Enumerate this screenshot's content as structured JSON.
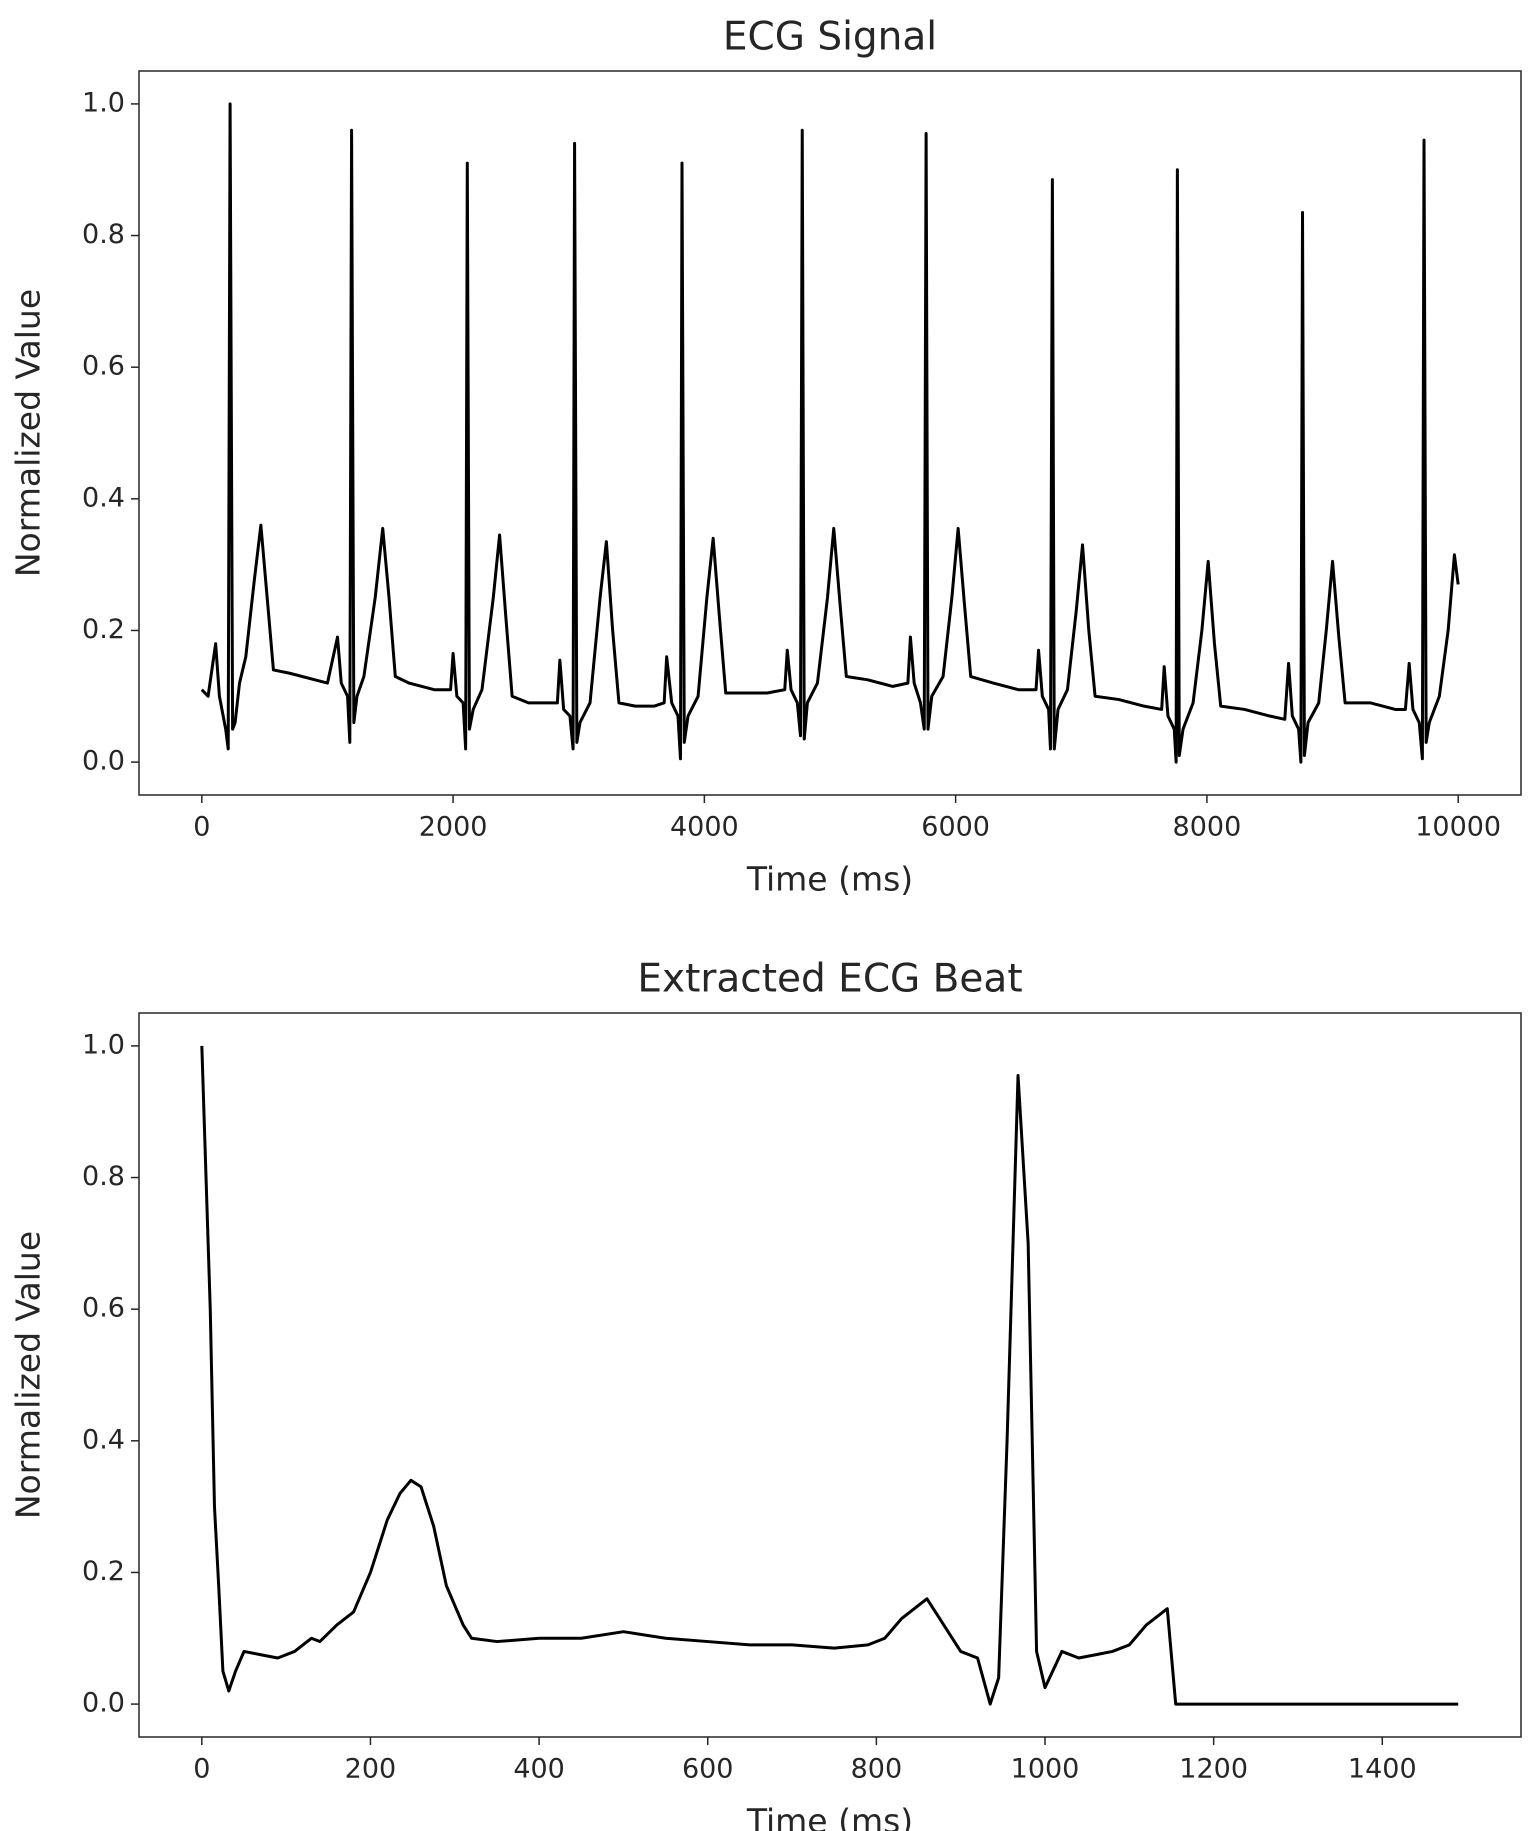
{
  "chart_data": [
    {
      "type": "line",
      "title": "ECG Signal",
      "x_label": "Time (ms)",
      "y_label": "Normalized Value",
      "color": "#000000",
      "xlim": [
        -500,
        10500
      ],
      "ylim": [
        -0.05,
        1.05
      ],
      "xticks": [
        0,
        2000,
        4000,
        6000,
        8000,
        10000
      ],
      "yticks": [
        {
          "value": 0,
          "label": "0.0"
        },
        0.2,
        0.4,
        0.6,
        0.8,
        {
          "value": 1,
          "label": "1.0"
        }
      ],
      "x": [
        0,
        50,
        110,
        140,
        190,
        210,
        225,
        245,
        265,
        300,
        350,
        420,
        470,
        520,
        570,
        700,
        900,
        1000,
        1080,
        1110,
        1160,
        1178,
        1192,
        1210,
        1235,
        1290,
        1380,
        1440,
        1490,
        1540,
        1650,
        1850,
        1980,
        2000,
        2030,
        2080,
        2100,
        2113,
        2130,
        2160,
        2230,
        2320,
        2370,
        2420,
        2470,
        2600,
        2750,
        2830,
        2850,
        2880,
        2930,
        2955,
        2967,
        2985,
        3010,
        3090,
        3170,
        3220,
        3270,
        3320,
        3450,
        3600,
        3680,
        3700,
        3740,
        3790,
        3810,
        3822,
        3840,
        3870,
        3950,
        4020,
        4070,
        4120,
        4170,
        4300,
        4500,
        4640,
        4660,
        4690,
        4740,
        4765,
        4779,
        4795,
        4820,
        4900,
        4980,
        5030,
        5080,
        5130,
        5300,
        5500,
        5620,
        5640,
        5670,
        5720,
        5750,
        5765,
        5780,
        5810,
        5900,
        5970,
        6020,
        6070,
        6120,
        6300,
        6500,
        6640,
        6660,
        6690,
        6740,
        6755,
        6770,
        6785,
        6815,
        6890,
        6960,
        7010,
        7060,
        7110,
        7300,
        7500,
        7640,
        7660,
        7690,
        7740,
        7755,
        7765,
        7780,
        7810,
        7890,
        7960,
        8010,
        8060,
        8110,
        8300,
        8500,
        8620,
        8650,
        8680,
        8730,
        8748,
        8761,
        8776,
        8805,
        8890,
        8950,
        9000,
        9050,
        9100,
        9300,
        9500,
        9580,
        9610,
        9640,
        9690,
        9715,
        9728,
        9745,
        9770,
        9850,
        9920,
        9970,
        10000
      ],
      "values": [
        0.11,
        0.1,
        0.18,
        0.1,
        0.05,
        0.02,
        1.0,
        0.05,
        0.06,
        0.12,
        0.16,
        0.28,
        0.36,
        0.25,
        0.14,
        0.135,
        0.125,
        0.12,
        0.19,
        0.12,
        0.1,
        0.03,
        0.96,
        0.06,
        0.1,
        0.13,
        0.25,
        0.355,
        0.25,
        0.13,
        0.12,
        0.11,
        0.11,
        0.165,
        0.1,
        0.09,
        0.02,
        0.91,
        0.05,
        0.08,
        0.11,
        0.25,
        0.345,
        0.22,
        0.1,
        0.09,
        0.09,
        0.09,
        0.155,
        0.08,
        0.07,
        0.02,
        0.94,
        0.03,
        0.06,
        0.09,
        0.25,
        0.335,
        0.2,
        0.09,
        0.085,
        0.085,
        0.09,
        0.16,
        0.09,
        0.07,
        0.005,
        0.91,
        0.03,
        0.07,
        0.1,
        0.25,
        0.34,
        0.22,
        0.105,
        0.105,
        0.105,
        0.11,
        0.17,
        0.11,
        0.09,
        0.04,
        0.96,
        0.035,
        0.09,
        0.12,
        0.25,
        0.355,
        0.24,
        0.13,
        0.125,
        0.115,
        0.12,
        0.19,
        0.12,
        0.09,
        0.05,
        0.955,
        0.05,
        0.1,
        0.13,
        0.25,
        0.355,
        0.24,
        0.13,
        0.12,
        0.11,
        0.11,
        0.17,
        0.1,
        0.08,
        0.02,
        0.885,
        0.02,
        0.08,
        0.11,
        0.23,
        0.33,
        0.2,
        0.1,
        0.095,
        0.085,
        0.08,
        0.145,
        0.07,
        0.05,
        0.0,
        0.9,
        0.01,
        0.05,
        0.09,
        0.2,
        0.305,
        0.18,
        0.085,
        0.08,
        0.07,
        0.065,
        0.15,
        0.07,
        0.05,
        0.0,
        0.835,
        0.01,
        0.06,
        0.09,
        0.2,
        0.305,
        0.19,
        0.09,
        0.09,
        0.08,
        0.08,
        0.15,
        0.08,
        0.06,
        0.005,
        0.945,
        0.03,
        0.06,
        0.1,
        0.2,
        0.315,
        0.27
      ]
    },
    {
      "type": "line",
      "title": "Extracted ECG Beat",
      "x_label": "Time (ms)",
      "y_label": "Normalized Value",
      "color": "#000000",
      "xlim": [
        -74.5,
        1564.5
      ],
      "ylim": [
        -0.05,
        1.05
      ],
      "xticks": [
        0,
        200,
        400,
        600,
        800,
        1000,
        1200,
        1400
      ],
      "yticks": [
        {
          "value": 0,
          "label": "0.0"
        },
        0.2,
        0.4,
        0.6,
        0.8,
        {
          "value": 1,
          "label": "1.0"
        }
      ],
      "x": [
        0,
        10,
        15,
        20,
        25,
        32,
        40,
        50,
        70,
        90,
        110,
        130,
        140,
        160,
        180,
        200,
        220,
        235,
        248,
        260,
        275,
        290,
        310,
        320,
        350,
        400,
        450,
        500,
        550,
        600,
        650,
        700,
        750,
        790,
        810,
        830,
        850,
        860,
        880,
        900,
        920,
        935,
        945,
        955,
        968,
        980,
        990,
        1000,
        1020,
        1040,
        1060,
        1080,
        1100,
        1120,
        1145,
        1155,
        1490
      ],
      "values": [
        1.0,
        0.6,
        0.3,
        0.18,
        0.05,
        0.02,
        0.05,
        0.08,
        0.075,
        0.07,
        0.08,
        0.1,
        0.095,
        0.12,
        0.14,
        0.2,
        0.28,
        0.32,
        0.34,
        0.33,
        0.27,
        0.18,
        0.12,
        0.1,
        0.095,
        0.1,
        0.1,
        0.11,
        0.1,
        0.095,
        0.09,
        0.09,
        0.085,
        0.09,
        0.1,
        0.13,
        0.15,
        0.16,
        0.12,
        0.08,
        0.07,
        0.0,
        0.04,
        0.4,
        0.955,
        0.7,
        0.08,
        0.025,
        0.08,
        0.07,
        0.075,
        0.08,
        0.09,
        0.12,
        0.145,
        0.0,
        0.0
      ]
    }
  ]
}
